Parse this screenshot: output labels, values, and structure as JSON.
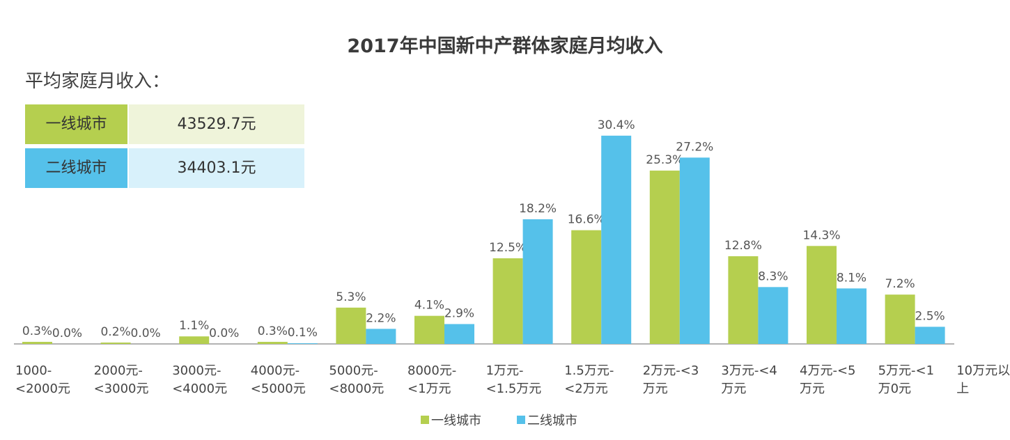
{
  "chart_data": {
    "type": "bar",
    "title": "2017年中国新中产群体家庭月均收入",
    "categories": [
      [
        "1000-",
        "<2000元"
      ],
      [
        "2000元-",
        "<3000元"
      ],
      [
        "3000元-",
        "<4000元"
      ],
      [
        "4000元-",
        "<5000元"
      ],
      [
        "5000元-",
        "<8000元"
      ],
      [
        "8000元-",
        "<1万元"
      ],
      [
        "1万元-",
        "<1.5万元"
      ],
      [
        "1.5万元-",
        "<2万元"
      ],
      [
        "2万元-<3",
        "万元"
      ],
      [
        "3万元-<4",
        "万元"
      ],
      [
        "4万元-<5",
        "万元"
      ],
      [
        "5万元-<1",
        "万0元"
      ],
      [
        "10万元以",
        "上"
      ]
    ],
    "series": [
      {
        "name": "一线城市",
        "color": "#b5cf4f",
        "values": [
          0.3,
          0.2,
          1.1,
          0.3,
          5.3,
          4.1,
          12.5,
          16.6,
          25.3,
          12.8,
          14.3,
          7.2,
          0
        ],
        "labels": [
          "0.3%",
          "0.2%",
          "1.1%",
          "0.3%",
          "5.3%",
          "4.1%",
          "12.5%",
          "16.6%",
          "25.3%",
          "12.8%",
          "14.3%",
          "7.2%",
          ""
        ]
      },
      {
        "name": "二线城市",
        "color": "#55c1ea",
        "values": [
          0.0,
          0.0,
          0.0,
          0.1,
          2.2,
          2.9,
          18.2,
          30.4,
          27.2,
          8.3,
          8.1,
          2.5,
          0
        ],
        "labels": [
          "0.0%",
          "0.0%",
          "0.0%",
          "0.1%",
          "2.2%",
          "2.9%",
          "18.2%",
          "30.4%",
          "27.2%",
          "8.3%",
          "8.1%",
          "2.5%",
          ""
        ]
      }
    ],
    "unit": "%",
    "grid": false,
    "legend": "bottom"
  },
  "summary": {
    "heading": "平均家庭月收入：",
    "rows": [
      {
        "label": "一线城市",
        "value": "43529.7元",
        "label_color": "#b5cf4f",
        "value_color": "#eff4da"
      },
      {
        "label": "二线城市",
        "value": "34403.1元",
        "label_color": "#55c1ea",
        "value_color": "#d8f1fb"
      }
    ]
  }
}
